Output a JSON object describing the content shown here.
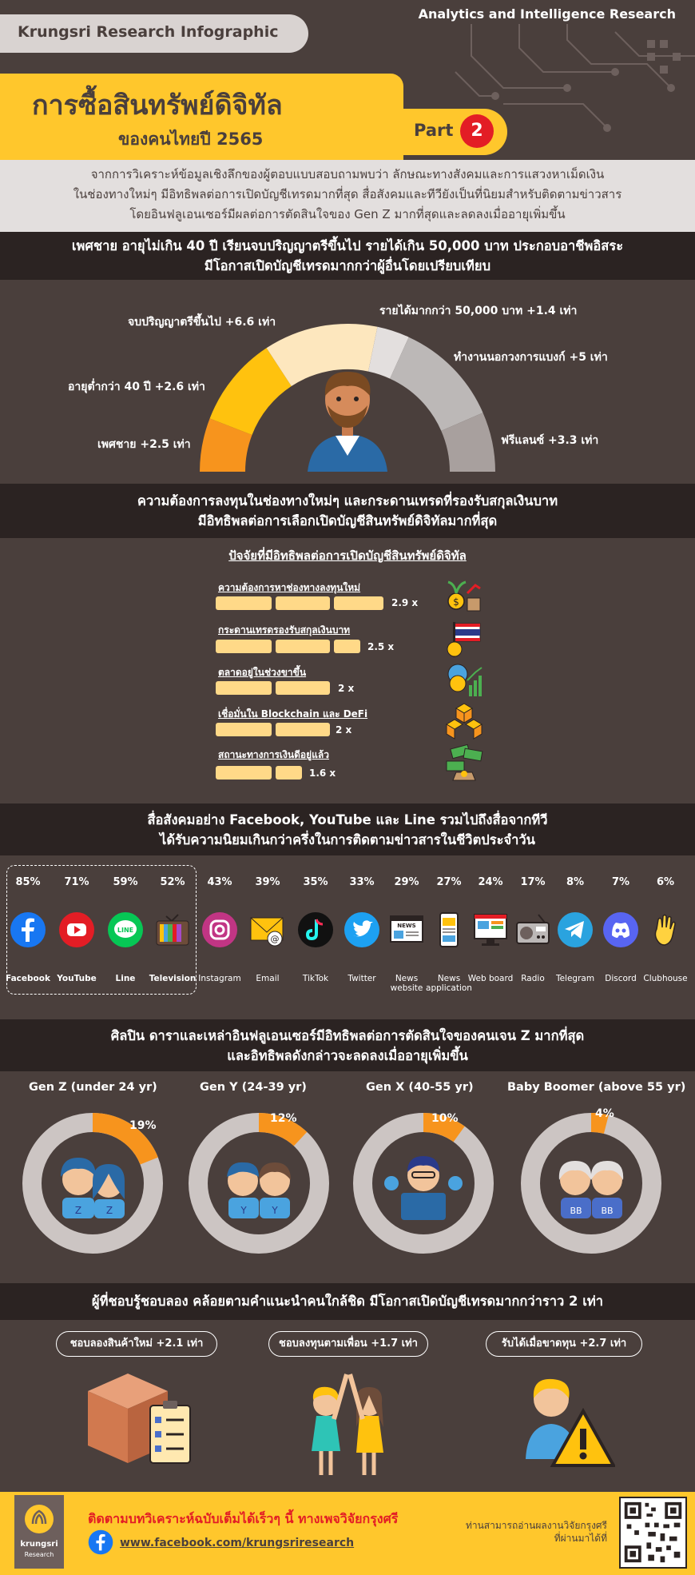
{
  "header": {
    "brand": "Krungsri Research Infographic",
    "org": "Analytics and Intelligence Research",
    "title": "การซื้อสินทรัพย์ดิจิทัล",
    "subtitle": "ของคนไทยปี 2565",
    "part_label": "Part",
    "part_number": "2"
  },
  "intro": {
    "line1": "จากการวิเคราะห์ข้อมูลเชิงลึกของผู้ตอบแบบสอบถามพบว่า ลักษณะทางสังคมและการแสวงหาเม็ดเงิน",
    "line2": "ในช่องทางใหม่ๆ มีอิทธิพลต่อการเปิดบัญชีเทรดมากที่สุด สื่อสังคมและทีวียังเป็นที่นิยมสำหรับติดตามข่าวสาร",
    "line3": "โดยอินฟลูเอนเซอร์มีผลต่อการตัดสินใจของ Gen Z มากที่สุดและลดลงเมื่ออายุเพิ่มขึ้น"
  },
  "section1": {
    "title1": "เพศชาย อายุไม่เกิน 40 ปี เรียนจบปริญญาตรีขึ้นไป รายได้เกิน 50,000 บาท ประกอบอาชีพอิสระ",
    "title2": "มีโอกาสเปิดบัญชีเทรดมากกว่าผู้อื่นโดยเปรียบเทียบ",
    "labels": {
      "male": "เพศชาย +2.5 เท่า",
      "age": "อายุต่ำกว่า 40 ปี +2.6 เท่า",
      "degree": "จบปริญญาตรีขึ้นไป +6.6 เท่า",
      "income": "รายได้มากกว่า 50,000 บาท +1.4 เท่า",
      "nonbank": "ทำงานนอกวงการแบงก์ +5 เท่า",
      "freelance": "ฟรีแลนซ์ +3.3 เท่า"
    },
    "colors": {
      "male": "#f7941d",
      "age": "#ffc20e",
      "degree": "#fde7be",
      "income": "#e3dfde",
      "nonbank": "#bcb8b7",
      "freelance": "#a8a09e"
    }
  },
  "section2": {
    "title1": "ความต้องการลงทุนในช่องทางใหม่ๆ และกระดานเทรดที่รองรับสกุลเงินบาท",
    "title2": "มีอิทธิพลต่อการเลือกเปิดบัญชีสินทรัพย์ดิจิทัลมากที่สุด",
    "chart_title": "ปัจจัยที่มีอิทธิพลต่อการเปิดบัญชีสินทรัพย์ดิจิทัล",
    "factors": [
      {
        "label": "ความต้องการหาช่องทางลงทุนใหม่",
        "value": 2.9,
        "display": "2.9 x"
      },
      {
        "label": "กระดานเทรดรองรับสกุลเงินบาท",
        "value": 2.5,
        "display": "2.5 x"
      },
      {
        "label": "ตลาดอยู่ในช่วงขาขึ้น",
        "value": 2,
        "display": "2 x"
      },
      {
        "label": "เชื่อมั่นใน Blockchain และ DeFi",
        "value": 2,
        "display": "2 x"
      },
      {
        "label": "สถานะทางการเงินดีอยู่แล้ว",
        "value": 1.6,
        "display": "1.6 x"
      }
    ]
  },
  "section3": {
    "title1": "สื่อสังคมอย่าง Facebook, YouTube และ Line รวมไปถึงสื่อจากทีวี",
    "title2": "ได้รับความนิยมเกินกว่าครึ่งในการติดตามข่าวสารในชีวิตประจำวัน",
    "media": [
      {
        "name": "Facebook",
        "pct": "85%",
        "icon": "facebook-icon"
      },
      {
        "name": "YouTube",
        "pct": "71%",
        "icon": "youtube-icon"
      },
      {
        "name": "Line",
        "pct": "59%",
        "icon": "line-icon"
      },
      {
        "name": "Television",
        "pct": "52%",
        "icon": "television-icon"
      },
      {
        "name": "Instagram",
        "pct": "43%",
        "icon": "instagram-icon"
      },
      {
        "name": "Email",
        "pct": "39%",
        "icon": "email-icon"
      },
      {
        "name": "TikTok",
        "pct": "35%",
        "icon": "tiktok-icon"
      },
      {
        "name": "Twitter",
        "pct": "33%",
        "icon": "twitter-icon"
      },
      {
        "name": "News website",
        "pct": "29%",
        "icon": "news-website-icon"
      },
      {
        "name": "News application",
        "pct": "27%",
        "icon": "news-app-icon"
      },
      {
        "name": "Web board",
        "pct": "24%",
        "icon": "web-board-icon"
      },
      {
        "name": "Radio",
        "pct": "17%",
        "icon": "radio-icon"
      },
      {
        "name": "Telegram",
        "pct": "8%",
        "icon": "telegram-icon"
      },
      {
        "name": "Discord",
        "pct": "7%",
        "icon": "discord-icon"
      },
      {
        "name": "Clubhouse",
        "pct": "6%",
        "icon": "clubhouse-icon"
      }
    ]
  },
  "section4": {
    "title1": "ศิลปิน ดาราและเหล่าอินฟลูเอนเซอร์มีอิทธิพลต่อการตัดสินใจของคนเจน Z มากที่สุด",
    "title2": "และอิทธิพลดังกล่าวจะลดลงเมื่ออายุเพิ่มขึ้น",
    "generations": [
      {
        "label": "Gen Z (under 24 yr)",
        "pct": "19%",
        "value": 0.19
      },
      {
        "label": "Gen Y (24-39 yr)",
        "pct": "12%",
        "value": 0.12
      },
      {
        "label": "Gen X (40-55 yr)",
        "pct": "10%",
        "value": 0.1
      },
      {
        "label": "Baby Boomer (above 55 yr)",
        "pct": "4%",
        "value": 0.04
      }
    ],
    "colors": {
      "accent": "#f7941d",
      "ring": "#ccc5c3"
    }
  },
  "section5": {
    "title": "ผู้ที่ชอบรู้ชอบลอง คล้อยตามคำแนะนำคนใกล้ชิด มีโอกาสเปิดบัญชีเทรดมากกว่าราว 2 เท่า",
    "pills": [
      "ชอบลองสินค้าใหม่ +2.1 เท่า",
      "ชอบลงทุนตามเพื่อน +1.7 เท่า",
      "รับได้เมื่อขาดทุน +2.7 เท่า"
    ]
  },
  "footer": {
    "line1": "ติดตามบทวิเคราะห์ฉบับเต็มได้เร็วๆ นี้ ทางเพจวิจัยกรุงศรี",
    "link": "www.facebook.com/krungsriresearch",
    "right1": "ท่านสามารถอ่านผลงานวิจัยกรุงศรี",
    "right2": "ที่ผ่านมาได้ที่",
    "logo_text": "krungsri",
    "logo_sub": "Research"
  },
  "colors": {
    "background": "#4a3f3c",
    "yellow": "#ffc72c",
    "dark_bar": "#2b2322",
    "red": "#e31d25"
  }
}
